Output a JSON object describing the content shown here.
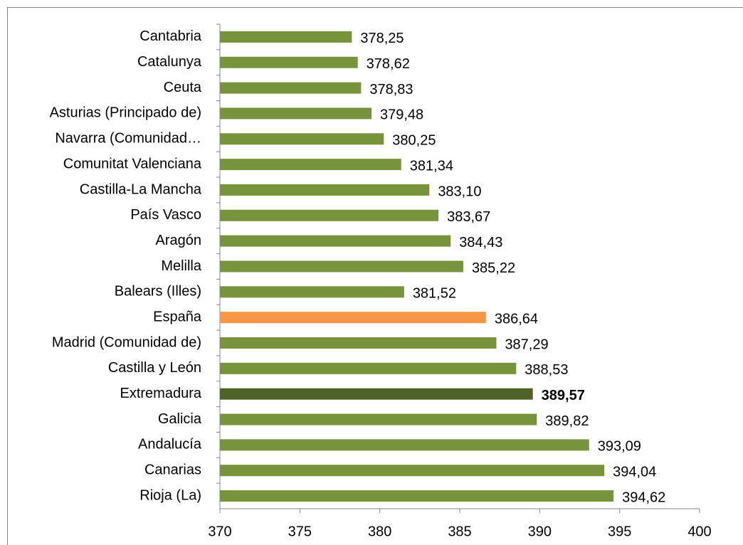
{
  "chart_data": {
    "type": "bar",
    "orientation": "horizontal",
    "categories": [
      "Cantabria",
      "Catalunya",
      "Ceuta",
      "Asturias (Principado de)",
      "Navarra (Comunidad…",
      "Comunitat Valenciana",
      "Castilla-La Mancha",
      "País Vasco",
      "Aragón",
      "Melilla",
      "Balears (Illes)",
      "España",
      "Madrid (Comunidad de)",
      "Castilla y León",
      "Extremadura",
      "Galicia",
      "Andalucía",
      "Canarias",
      "Rioja (La)"
    ],
    "values": [
      378.25,
      378.62,
      378.83,
      379.48,
      380.25,
      381.34,
      383.1,
      383.67,
      384.43,
      385.22,
      381.52,
      386.64,
      387.29,
      388.53,
      389.57,
      389.82,
      393.09,
      394.04,
      394.62
    ],
    "value_labels": [
      "378,25",
      "378,62",
      "378,83",
      "379,48",
      "380,25",
      "381,34",
      "383,10",
      "383,67",
      "384,43",
      "385,22",
      "381,52",
      "386,64",
      "387,29",
      "388,53",
      "389,57",
      "389,82",
      "393,09",
      "394,04",
      "394,62"
    ],
    "value_label_bold": [
      false,
      false,
      false,
      false,
      false,
      false,
      false,
      false,
      false,
      false,
      false,
      false,
      false,
      false,
      true,
      false,
      false,
      false,
      false
    ],
    "colors": [
      "#77933c",
      "#77933c",
      "#77933c",
      "#77933c",
      "#77933c",
      "#77933c",
      "#77933c",
      "#77933c",
      "#77933c",
      "#77933c",
      "#77933c",
      "#f79646",
      "#77933c",
      "#77933c",
      "#4f6228",
      "#77933c",
      "#77933c",
      "#77933c",
      "#77933c"
    ],
    "xlim": [
      370,
      400
    ],
    "xticks": [
      370,
      375,
      380,
      385,
      390,
      395,
      400
    ],
    "grid": false
  }
}
